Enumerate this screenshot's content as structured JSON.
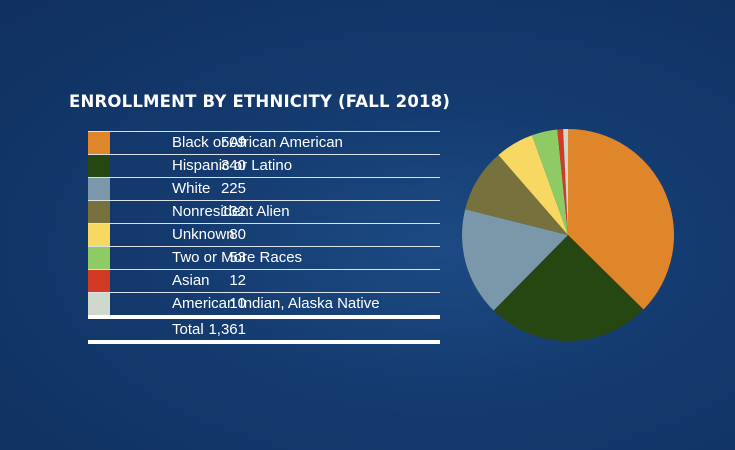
{
  "title": "ENROLLMENT BY ETHNICITY (FALL 2018)",
  "chart_data": {
    "type": "pie",
    "title": "ENROLLMENT BY ETHNICITY (FALL 2018)",
    "slices": [
      {
        "label": "Black or African American",
        "value": 509,
        "value_text": "509",
        "color": "#e0862a"
      },
      {
        "label": "Hispanic or Latino",
        "value": 340,
        "value_text": "340",
        "color": "#264612"
      },
      {
        "label": "White",
        "value": 225,
        "value_text": "225",
        "color": "#7b98aa"
      },
      {
        "label": "Nonresident Alien",
        "value": 132,
        "value_text": "132",
        "color": "#77713e"
      },
      {
        "label": "Unknown",
        "value": 80,
        "value_text": "80",
        "color": "#f7d862"
      },
      {
        "label": "Two or More Races",
        "value": 53,
        "value_text": "53",
        "color": "#8fcb64"
      },
      {
        "label": "Asian",
        "value": 12,
        "value_text": "12",
        "color": "#d23a26"
      },
      {
        "label": "American Indian, Alaska Native",
        "value": 10,
        "value_text": "10",
        "color": "#cfd8cc"
      }
    ],
    "total": {
      "label": "Total",
      "value": 1361,
      "value_text": "1,361"
    }
  }
}
